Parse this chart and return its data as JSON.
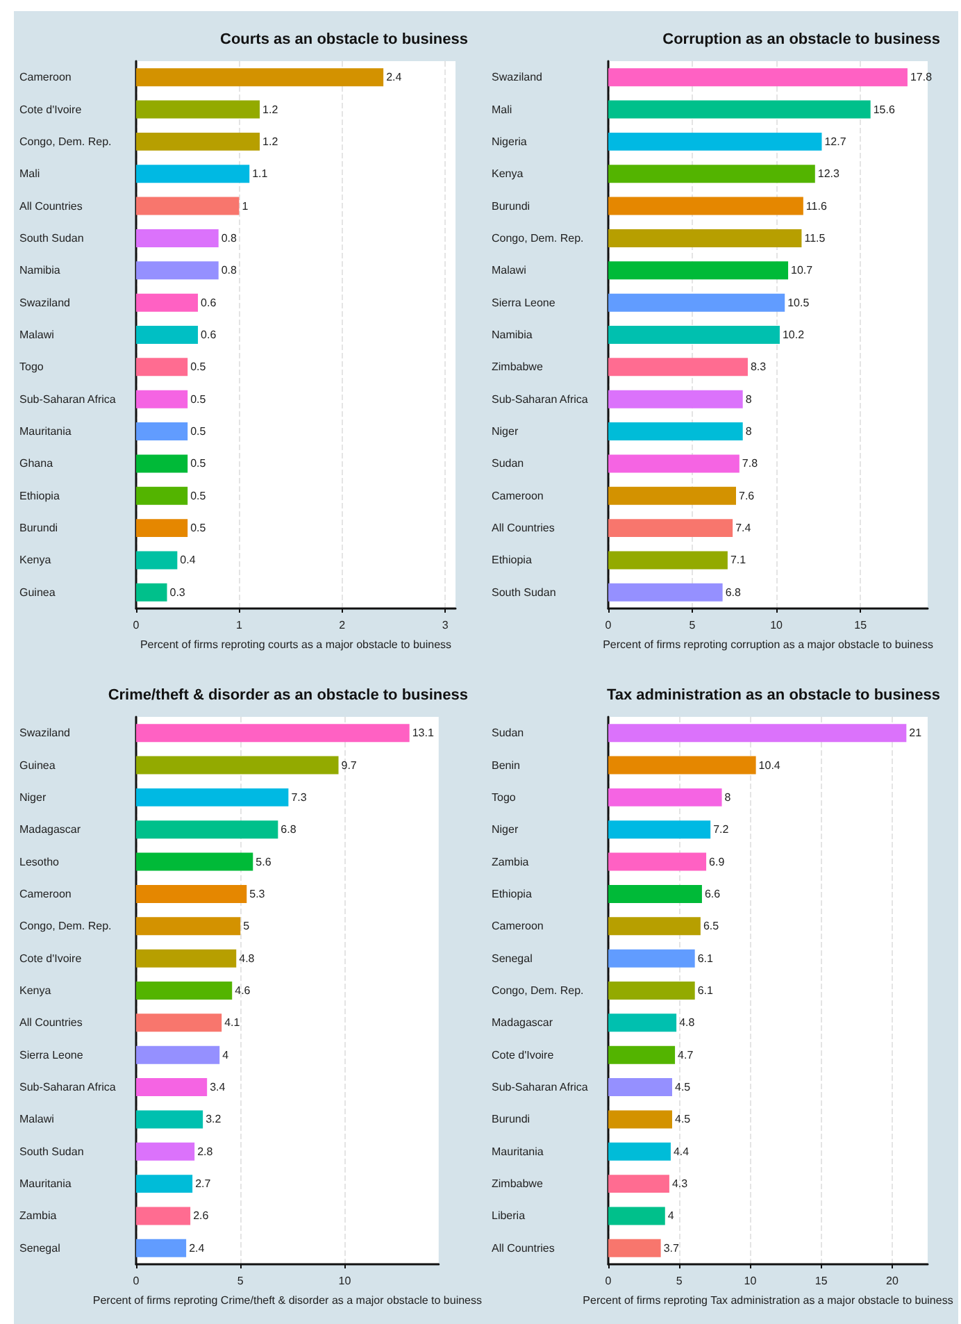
{
  "chart_data": [
    {
      "type": "bar",
      "orientation": "horizontal",
      "title": "Courts as an obstacle to business",
      "xlabel": "Percent of firms reproting courts as a major obstacle to buiness",
      "categories": [
        "Cameroon",
        "Cote d'Ivoire",
        "Congo, Dem. Rep.",
        "Mali",
        "All Countries",
        "South Sudan",
        "Namibia",
        "Swaziland",
        "Malawi",
        "Togo",
        "Sub-Saharan Africa",
        "Mauritania",
        "Ghana",
        "Ethiopia",
        "Burundi",
        "Kenya",
        "Guinea"
      ],
      "values": [
        2.4,
        1.2,
        1.2,
        1.1,
        1,
        0.8,
        0.8,
        0.6,
        0.6,
        0.5,
        0.5,
        0.5,
        0.5,
        0.5,
        0.5,
        0.4,
        0.3
      ],
      "colors": [
        "#d39200",
        "#93aa00",
        "#b79f00",
        "#00b9e3",
        "#f8766d",
        "#db72fb",
        "#9590ff",
        "#ff61c3",
        "#00bfc4",
        "#ff6c91",
        "#f564e3",
        "#619cff",
        "#00ba38",
        "#53b400",
        "#e58700",
        "#00c1a3",
        "#00c08b"
      ],
      "xlim": [
        0,
        3.1
      ],
      "xticks": [
        0,
        1,
        2,
        3
      ],
      "grid": "x",
      "data_labels": true
    },
    {
      "type": "bar",
      "orientation": "horizontal",
      "title": "Corruption as an obstacle to business",
      "xlabel": "Percent of firms reproting corruption as a major obstacle to buiness",
      "categories": [
        "Swaziland",
        "Mali",
        "Nigeria",
        "Kenya",
        "Burundi",
        "Congo, Dem. Rep.",
        "Malawi",
        "Sierra Leone",
        "Namibia",
        "Zimbabwe",
        "Sub-Saharan Africa",
        "Niger",
        "Sudan",
        "Cameroon",
        "All Countries",
        "Ethiopia",
        "South Sudan"
      ],
      "values": [
        17.8,
        15.6,
        12.7,
        12.3,
        11.6,
        11.5,
        10.7,
        10.5,
        10.2,
        8.3,
        8,
        8,
        7.8,
        7.6,
        7.4,
        7.1,
        6.8
      ],
      "colors": [
        "#ff61c3",
        "#00c08b",
        "#00b9e3",
        "#53b400",
        "#e58700",
        "#b79f00",
        "#00ba38",
        "#619cff",
        "#00c0af",
        "#ff6c91",
        "#db72fb",
        "#00bcd8",
        "#f564e3",
        "#d39200",
        "#f8766d",
        "#93aa00",
        "#9590ff"
      ],
      "xlim": [
        0,
        19
      ],
      "xticks": [
        0,
        5,
        10,
        15
      ],
      "grid": "x",
      "data_labels": true
    },
    {
      "type": "bar",
      "orientation": "horizontal",
      "title": "Crime/theft & disorder as an obstacle to business",
      "xlabel": "Percent of firms reproting Crime/theft & disorder as a major obstacle to buiness",
      "categories": [
        "Swaziland",
        "Guinea",
        "Niger",
        "Madagascar",
        "Lesotho",
        "Cameroon",
        "Congo, Dem. Rep.",
        "Cote d'Ivoire",
        "Kenya",
        "All Countries",
        "Sierra Leone",
        "Sub-Saharan Africa",
        "Malawi",
        "South Sudan",
        "Mauritania",
        "Zambia",
        "Senegal"
      ],
      "values": [
        13.1,
        9.7,
        7.3,
        6.8,
        5.6,
        5.3,
        5,
        4.8,
        4.6,
        4.1,
        4,
        3.4,
        3.2,
        2.8,
        2.7,
        2.6,
        2.4
      ],
      "colors": [
        "#ff61c3",
        "#93aa00",
        "#00b9e3",
        "#00c08b",
        "#00ba38",
        "#e58700",
        "#d39200",
        "#b79f00",
        "#53b400",
        "#f8766d",
        "#9590ff",
        "#f564e3",
        "#00c0af",
        "#db72fb",
        "#00bcd8",
        "#ff6c91",
        "#619cff"
      ],
      "xlim": [
        0,
        14.5
      ],
      "xticks": [
        0,
        5,
        10
      ],
      "grid": "x",
      "data_labels": true
    },
    {
      "type": "bar",
      "orientation": "horizontal",
      "title": "Tax administration as an obstacle to business",
      "xlabel": "Percent of firms reproting Tax administration as a major obstacle to buiness",
      "categories": [
        "Sudan",
        "Benin",
        "Togo",
        "Niger",
        "Zambia",
        "Ethiopia",
        "Cameroon",
        "Senegal",
        "Congo, Dem. Rep.",
        "Madagascar",
        "Cote d'Ivoire",
        "Sub-Saharan Africa",
        "Burundi",
        "Mauritania",
        "Zimbabwe",
        "Liberia",
        "All Countries"
      ],
      "values": [
        21,
        10.4,
        8,
        7.2,
        6.9,
        6.6,
        6.5,
        6.1,
        6.1,
        4.8,
        4.7,
        4.5,
        4.5,
        4.4,
        4.3,
        4,
        3.7
      ],
      "colors": [
        "#db72fb",
        "#e58700",
        "#f564e3",
        "#00b9e3",
        "#ff61c3",
        "#00ba38",
        "#b79f00",
        "#619cff",
        "#93aa00",
        "#00c0af",
        "#53b400",
        "#9590ff",
        "#d39200",
        "#00bcd8",
        "#ff6c91",
        "#00c08b",
        "#f8766d"
      ],
      "xlim": [
        0,
        22.5
      ],
      "xticks": [
        0,
        5,
        10,
        15,
        20
      ],
      "grid": "x",
      "data_labels": true
    }
  ]
}
